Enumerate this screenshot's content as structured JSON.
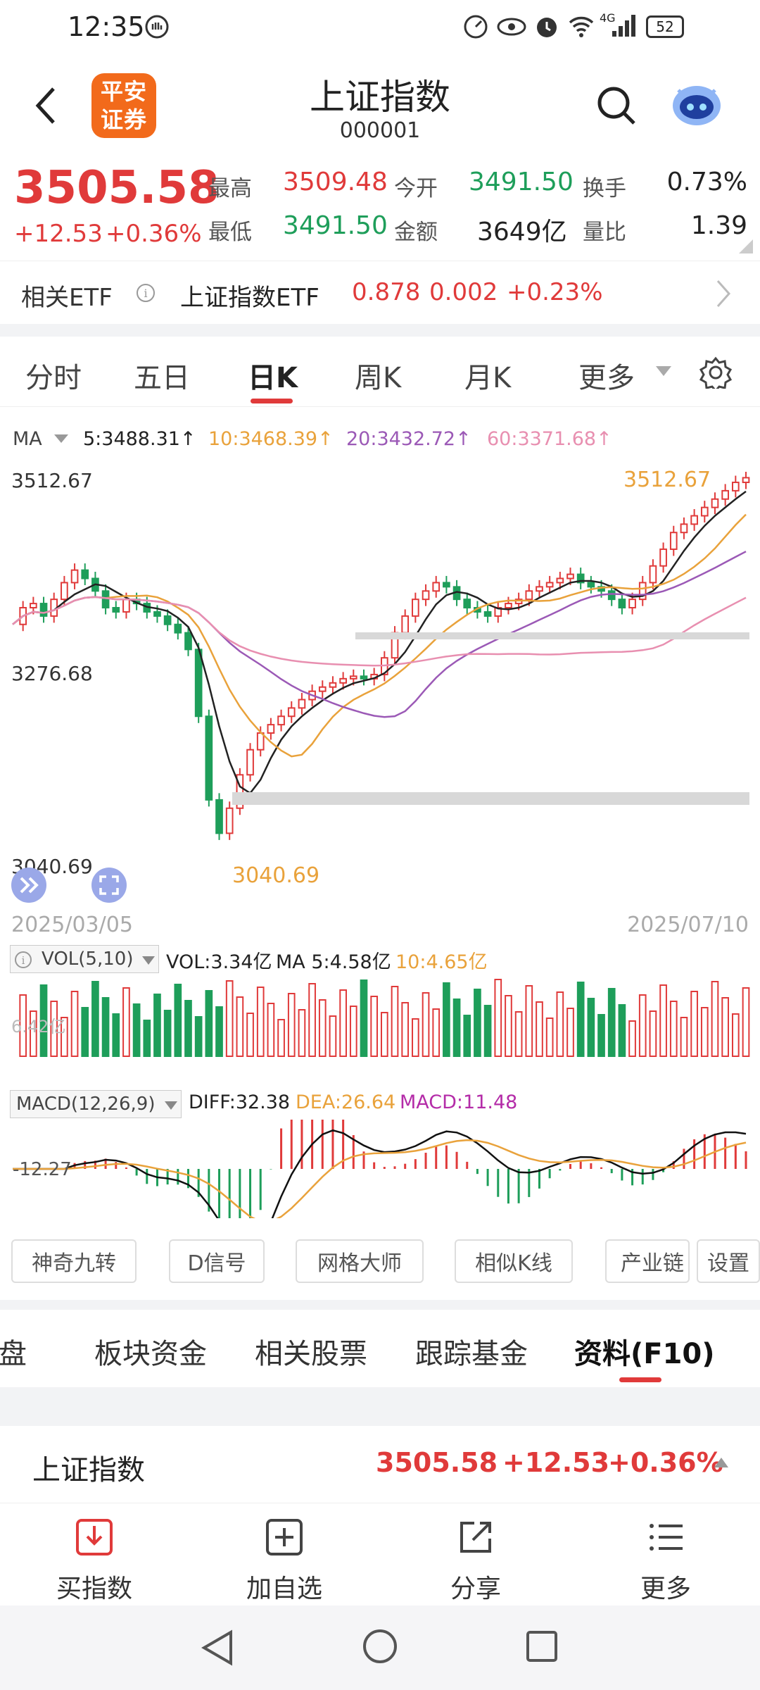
{
  "status": {
    "time": "12:35",
    "battery": "52",
    "network": "4G"
  },
  "header": {
    "broker_logo": "平安证券",
    "title": "上证指数",
    "code": "000001",
    "back_icon": "back-arrow-icon",
    "search_icon": "search-icon",
    "bot_icon": "robot-icon"
  },
  "quote": {
    "price": "3505.58",
    "change": "+12.53",
    "change_pct": "+0.36%",
    "high_label": "最高",
    "high": "3509.48",
    "low_label": "最低",
    "low": "3491.50",
    "open_label": "今开",
    "open": "3491.50",
    "amount_label": "金额",
    "amount": "3649亿",
    "turnover_label": "换手",
    "turnover": "0.73%",
    "vol_ratio_label": "量比",
    "vol_ratio": "1.39"
  },
  "etf": {
    "label": "相关ETF",
    "name": "上证指数ETF",
    "price": "0.878",
    "change": "0.002",
    "pct": "+0.23%"
  },
  "tabs": [
    "分时",
    "五日",
    "日K",
    "周K",
    "月K",
    "更多"
  ],
  "active_tab": "日K",
  "chart": {
    "ma_label": "MA",
    "ma5": "5:3488.31↑",
    "ma10": "10:3468.39↑",
    "ma20": "20:3432.72↑",
    "ma60": "60:3371.68↑",
    "y_top": "3512.67",
    "y_mid": "3276.68",
    "y_bottom": "3040.69",
    "high_mark": "3512.67",
    "low_mark": "3040.69",
    "date_start": "2025/03/05",
    "date_end": "2025/07/10",
    "vol_label": "VOL(5,10)",
    "vol": "VOL:3.34亿",
    "vol_ma5": "MA 5:4.58亿",
    "vol_ma10": "10:4.65亿",
    "vol_axis": "6.42亿",
    "macd_label": "MACD(12,26,9)",
    "diff": "DIFF:32.38",
    "dea": "DEA:26.64",
    "macd": "MACD:11.48",
    "macd_axis": "-12.27"
  },
  "chart_data": {
    "type": "candlestick",
    "title": "上证指数 日K",
    "x_range": [
      "2025/03/05",
      "2025/07/10"
    ],
    "ylim": [
      3040.69,
      3512.67
    ],
    "price_path": [
      3330,
      3350,
      3355,
      3340,
      3360,
      3380,
      3395,
      3385,
      3370,
      3350,
      3345,
      3360,
      3355,
      3345,
      3340,
      3330,
      3320,
      3300,
      3220,
      3120,
      3080,
      3110,
      3150,
      3180,
      3200,
      3210,
      3220,
      3230,
      3240,
      3250,
      3255,
      3260,
      3265,
      3268,
      3265,
      3270,
      3290,
      3320,
      3340,
      3360,
      3370,
      3380,
      3375,
      3360,
      3350,
      3345,
      3340,
      3350,
      3355,
      3360,
      3370,
      3375,
      3380,
      3385,
      3390,
      3380,
      3375,
      3370,
      3360,
      3350,
      3360,
      3380,
      3400,
      3420,
      3440,
      3450,
      3460,
      3470,
      3480,
      3490,
      3500,
      3505.58
    ],
    "series": [
      {
        "name": "MA5",
        "last": 3488.31
      },
      {
        "name": "MA10",
        "last": 3468.39
      },
      {
        "name": "MA20",
        "last": 3432.72
      },
      {
        "name": "MA60",
        "last": 3371.68
      }
    ],
    "volume_last": "3.34亿",
    "macd": {
      "diff": 32.38,
      "dea": 26.64,
      "macd": 11.48
    }
  },
  "tools": [
    "神奇九转",
    "D信号",
    "网格大师",
    "相似K线",
    "产业链",
    "设置"
  ],
  "subtabs": [
    "盯盘",
    "板块资金",
    "相关股票",
    "跟踪基金",
    "资料(F10)"
  ],
  "active_subtab": "资料(F10)",
  "index_row": {
    "name": "上证指数",
    "price": "3505.58",
    "change": "+12.53",
    "pct": "+0.36%"
  },
  "bottom_bar": [
    {
      "label": "买指数",
      "icon": "download-box-icon"
    },
    {
      "label": "加自选",
      "icon": "plus-box-icon"
    },
    {
      "label": "分享",
      "icon": "share-icon"
    },
    {
      "label": "更多",
      "icon": "menu-list-icon"
    }
  ],
  "colors": {
    "up": "#e03a3a",
    "down": "#1e9e5a",
    "ma5": "#222222",
    "ma10": "#e9a23b",
    "ma20": "#9b59b6",
    "ma60": "#e88fb0"
  }
}
